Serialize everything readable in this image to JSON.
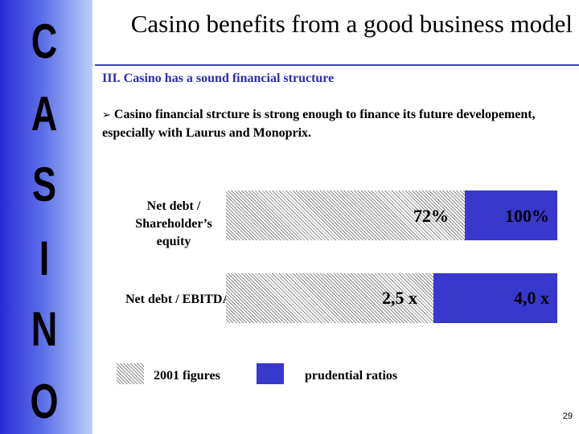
{
  "side_letters": [
    "C",
    "A",
    "S",
    "I",
    "N",
    "O"
  ],
  "title": "Casino benefits from a good business model",
  "section": "III. Casino has a sound financial structure",
  "bullet": "Casino financial strcture is strong enough to finance its future developement, especially with Laurus and Monoprix.",
  "page_number": "29",
  "colors": {
    "prudential": "#3838cc",
    "band": "#2b2bd6",
    "accent": "#3c3ccd"
  },
  "chart_data": {
    "type": "bar",
    "orientation": "horizontal",
    "categories": [
      "Net debt / Shareholder’s equity",
      "Net debt / EBITDA"
    ],
    "series": [
      {
        "name": "2001 figures",
        "pattern": "hatched",
        "values": [
          72,
          2.5
        ],
        "labels": [
          "72%",
          "2,5 x"
        ]
      },
      {
        "name": "prudential ratios",
        "pattern": "solid",
        "values": [
          100,
          4.0
        ],
        "labels": [
          "100%",
          "4,0 x"
        ]
      }
    ],
    "legend": "bottom"
  }
}
